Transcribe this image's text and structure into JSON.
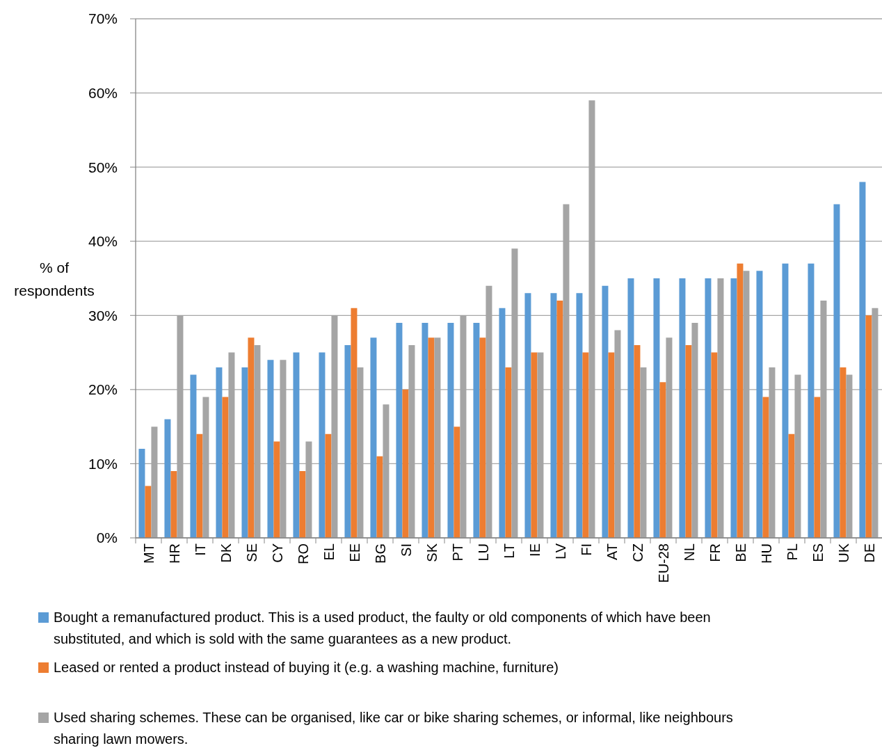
{
  "chart_data": {
    "type": "bar",
    "ylabel": "% of respondents",
    "categories": [
      "MT",
      "HR",
      "IT",
      "DK",
      "SE",
      "CY",
      "RO",
      "EL",
      "EE",
      "BG",
      "SI",
      "SK",
      "PT",
      "LU",
      "LT",
      "IE",
      "LV",
      "FI",
      "AT",
      "CZ",
      "EU-28",
      "NL",
      "FR",
      "BE",
      "HU",
      "PL",
      "ES",
      "UK",
      "DE"
    ],
    "series": [
      {
        "name": "Bought a remanufactured product. This is a used product, the faulty or old components of which have been substituted, and which is sold with the same guarantees as a new product.",
        "color": "#5b9bd5",
        "values": [
          12,
          16,
          22,
          23,
          23,
          24,
          25,
          25,
          26,
          27,
          29,
          29,
          29,
          29,
          31,
          33,
          33,
          33,
          34,
          35,
          35,
          35,
          35,
          35,
          36,
          37,
          37,
          45,
          48
        ]
      },
      {
        "name": "Leased or rented a product instead of buying it (e.g. a washing machine, furniture)",
        "color": "#ed7d31",
        "values": [
          7,
          9,
          14,
          19,
          27,
          13,
          9,
          14,
          31,
          11,
          20,
          27,
          15,
          27,
          23,
          25,
          32,
          25,
          25,
          26,
          21,
          26,
          25,
          37,
          19,
          14,
          19,
          23,
          30
        ]
      },
      {
        "name": "Used sharing schemes. These can be organised, like car or bike sharing schemes, or informal, like neighbours sharing lawn mowers.",
        "color": "#a5a5a5",
        "values": [
          15,
          30,
          19,
          25,
          26,
          24,
          13,
          30,
          23,
          18,
          26,
          27,
          30,
          34,
          39,
          25,
          45,
          59,
          28,
          23,
          27,
          29,
          35,
          36,
          23,
          22,
          32,
          22,
          31
        ]
      }
    ],
    "ylim": [
      0,
      70
    ],
    "yticks": [
      {
        "value": 0,
        "label": "0%"
      },
      {
        "value": 10,
        "label": "10%"
      },
      {
        "value": 20,
        "label": "20%"
      },
      {
        "value": 30,
        "label": "30%"
      },
      {
        "value": 40,
        "label": "40%"
      },
      {
        "value": 50,
        "label": "50%"
      },
      {
        "value": 60,
        "label": "60%"
      },
      {
        "value": 70,
        "label": "70%"
      }
    ],
    "grid": "y",
    "legend": "bottom"
  }
}
